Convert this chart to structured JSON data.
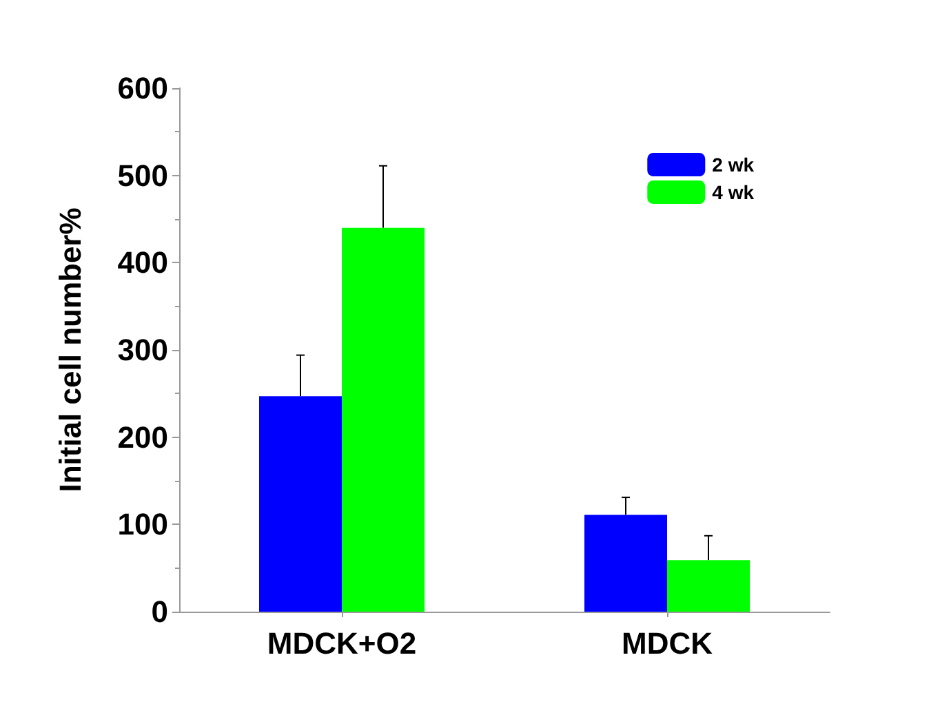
{
  "chart_data": {
    "type": "bar",
    "ylabel": "Initial cell number%",
    "categories": [
      "MDCK+O2",
      "MDCK"
    ],
    "series": [
      {
        "name": "2 wk",
        "color": "#0000ff",
        "values": [
          247,
          111
        ],
        "errors": [
          [
            247,
            294
          ],
          [
            111,
            131
          ]
        ]
      },
      {
        "name": "4 wk",
        "color": "#00ff00",
        "values": [
          440,
          59
        ],
        "errors": [
          [
            440,
            511
          ],
          [
            59,
            87
          ]
        ]
      }
    ],
    "ylim": [
      0,
      600
    ],
    "yticks": [
      0,
      100,
      200,
      300,
      400,
      500,
      600
    ],
    "grid": false,
    "legend": "top right"
  }
}
